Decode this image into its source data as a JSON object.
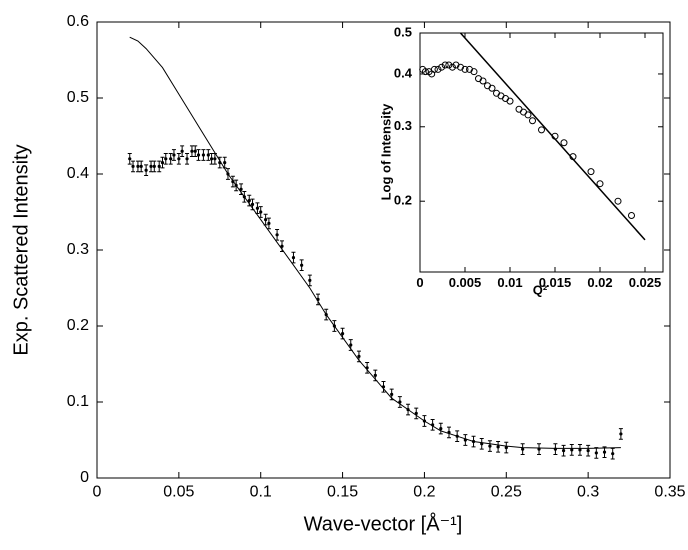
{
  "chart_data": [
    {
      "type": "scatter",
      "xlabel": "Wave-vector [Å⁻¹]",
      "ylabel": "Exp. Scattered Intensity",
      "xlim": [
        0,
        0.35
      ],
      "ylim": [
        0,
        0.6
      ],
      "xticks": [
        0,
        0.05,
        0.1,
        0.15,
        0.2,
        0.25,
        0.3,
        0.35
      ],
      "yticks": [
        0,
        0.1,
        0.2,
        0.3,
        0.4,
        0.5,
        0.6
      ],
      "series": [
        {
          "style": "errorbar",
          "color": "#000000",
          "error": 0.007,
          "x": [
            0.02,
            0.022,
            0.025,
            0.027,
            0.03,
            0.033,
            0.035,
            0.038,
            0.04,
            0.042,
            0.045,
            0.047,
            0.05,
            0.052,
            0.055,
            0.058,
            0.06,
            0.062,
            0.065,
            0.068,
            0.07,
            0.072,
            0.075,
            0.078,
            0.08,
            0.083,
            0.085,
            0.088,
            0.09,
            0.093,
            0.095,
            0.098,
            0.1,
            0.103,
            0.105,
            0.11,
            0.113,
            0.12,
            0.125,
            0.13,
            0.135,
            0.14,
            0.145,
            0.15,
            0.155,
            0.16,
            0.165,
            0.17,
            0.175,
            0.18,
            0.185,
            0.19,
            0.195,
            0.2,
            0.205,
            0.21,
            0.215,
            0.22,
            0.225,
            0.23,
            0.235,
            0.24,
            0.245,
            0.25,
            0.26,
            0.27,
            0.28,
            0.285,
            0.29,
            0.295,
            0.3,
            0.305,
            0.31,
            0.315,
            0.32
          ],
          "values": [
            0.42,
            0.41,
            0.41,
            0.41,
            0.405,
            0.41,
            0.41,
            0.41,
            0.415,
            0.42,
            0.42,
            0.425,
            0.42,
            0.43,
            0.42,
            0.43,
            0.43,
            0.425,
            0.425,
            0.425,
            0.42,
            0.42,
            0.415,
            0.415,
            0.4,
            0.39,
            0.385,
            0.38,
            0.37,
            0.365,
            0.36,
            0.355,
            0.35,
            0.34,
            0.335,
            0.32,
            0.305,
            0.29,
            0.28,
            0.26,
            0.235,
            0.215,
            0.2,
            0.19,
            0.175,
            0.16,
            0.145,
            0.135,
            0.12,
            0.11,
            0.1,
            0.09,
            0.085,
            0.075,
            0.07,
            0.065,
            0.06,
            0.055,
            0.05,
            0.048,
            0.045,
            0.042,
            0.041,
            0.04,
            0.038,
            0.038,
            0.038,
            0.036,
            0.037,
            0.037,
            0.036,
            0.033,
            0.034,
            0.032,
            0.058
          ]
        },
        {
          "style": "line",
          "color": "#000000",
          "x": [
            0.02,
            0.025,
            0.03,
            0.04,
            0.05,
            0.06,
            0.07,
            0.08,
            0.09,
            0.1,
            0.11,
            0.12,
            0.13,
            0.14,
            0.15,
            0.16,
            0.17,
            0.18,
            0.19,
            0.2,
            0.21,
            0.22,
            0.23,
            0.24,
            0.25,
            0.26,
            0.28,
            0.3,
            0.32
          ],
          "values": [
            0.58,
            0.575,
            0.565,
            0.54,
            0.505,
            0.47,
            0.435,
            0.4,
            0.37,
            0.34,
            0.31,
            0.28,
            0.25,
            0.215,
            0.185,
            0.155,
            0.13,
            0.105,
            0.09,
            0.075,
            0.062,
            0.055,
            0.048,
            0.045,
            0.042,
            0.04,
            0.039,
            0.039,
            0.04
          ]
        }
      ]
    },
    {
      "type": "scatter",
      "xlabel": "Q²",
      "ylabel": "Log of Intensity",
      "log_y": true,
      "xlim": [
        0,
        0.027
      ],
      "ylim": [
        0.136,
        0.5
      ],
      "xticks": [
        0,
        0.005,
        0.01,
        0.015,
        0.02,
        0.025
      ],
      "yticks": [
        0.2,
        0.3,
        0.4,
        0.5
      ],
      "series": [
        {
          "style": "circle",
          "color": "#000000",
          "x": [
            0.0003,
            0.0006,
            0.001,
            0.0013,
            0.0016,
            0.002,
            0.0024,
            0.0028,
            0.0032,
            0.0036,
            0.004,
            0.0045,
            0.005,
            0.0055,
            0.006,
            0.0065,
            0.007,
            0.0075,
            0.008,
            0.0085,
            0.009,
            0.0095,
            0.01,
            0.011,
            0.0115,
            0.012,
            0.0125,
            0.0135,
            0.015,
            0.016,
            0.017,
            0.019,
            0.02,
            0.022,
            0.0235
          ],
          "values": [
            0.41,
            0.405,
            0.405,
            0.4,
            0.41,
            0.41,
            0.415,
            0.42,
            0.42,
            0.415,
            0.42,
            0.415,
            0.41,
            0.41,
            0.405,
            0.39,
            0.385,
            0.375,
            0.37,
            0.36,
            0.355,
            0.35,
            0.345,
            0.33,
            0.325,
            0.32,
            0.31,
            0.295,
            0.285,
            0.275,
            0.255,
            0.235,
            0.22,
            0.2,
            0.185
          ]
        },
        {
          "style": "line",
          "color": "#000000",
          "x": [
            0.0045,
            0.025
          ],
          "values": [
            0.5,
            0.162
          ]
        }
      ]
    }
  ]
}
